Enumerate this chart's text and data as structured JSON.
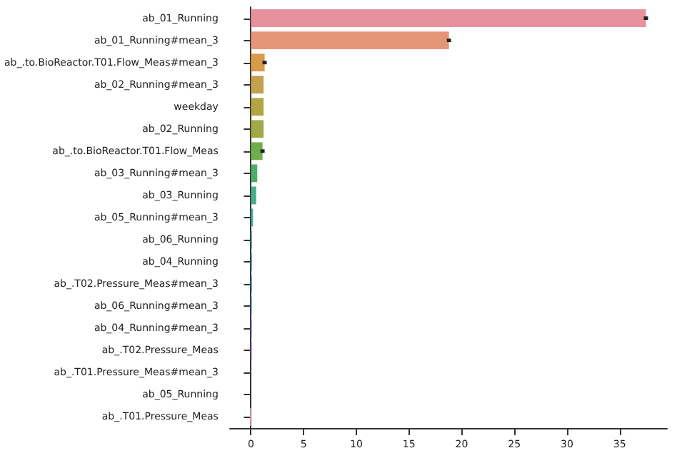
{
  "chart_data": {
    "type": "bar",
    "orientation": "horizontal",
    "categories": [
      "ab_01_Running",
      "ab_01_Running#mean_3",
      "ab_.to.BioReactor.T01.Flow_Meas#mean_3",
      "ab_02_Running#mean_3",
      "weekday",
      "ab_02_Running",
      "ab_.to.BioReactor.T01.Flow_Meas",
      "ab_03_Running#mean_3",
      "ab_03_Running",
      "ab_05_Running#mean_3",
      "ab_06_Running",
      "ab_04_Running",
      "ab_.T02.Pressure_Meas#mean_3",
      "ab_06_Running#mean_3",
      "ab_04_Running#mean_3",
      "ab_.T02.Pressure_Meas",
      "ab_.T01.Pressure_Meas#mean_3",
      "ab_05_Running",
      "ab_.T01.Pressure_Meas"
    ],
    "values": [
      37.5,
      18.8,
      1.3,
      1.2,
      1.2,
      1.2,
      1.1,
      0.6,
      0.5,
      0.2,
      0.1,
      0.1,
      0.1,
      0.1,
      0.1,
      0.1,
      0,
      0,
      -0.1
    ],
    "errors": [
      0.2,
      0.2,
      0.2,
      null,
      null,
      null,
      0.2,
      null,
      null,
      null,
      null,
      null,
      null,
      null,
      null,
      null,
      null,
      null,
      null
    ],
    "colors": [
      "#e8919e",
      "#e59578",
      "#d99a4a",
      "#c4a050",
      "#b3a445",
      "#a0a848",
      "#6fae4a",
      "#4cae6a",
      "#4aab8e",
      "#4aaaa0",
      "#4aa8ac",
      "#4da6b6",
      "#5aa3c8",
      "#80a0d8",
      "#a09ad8",
      "#c094d8",
      "#d492c8",
      "#e090b0",
      "#e3a0b8"
    ],
    "xlim": [
      -2,
      39.5
    ],
    "xticks": [
      0,
      5,
      10,
      15,
      20,
      25,
      30,
      35
    ]
  }
}
